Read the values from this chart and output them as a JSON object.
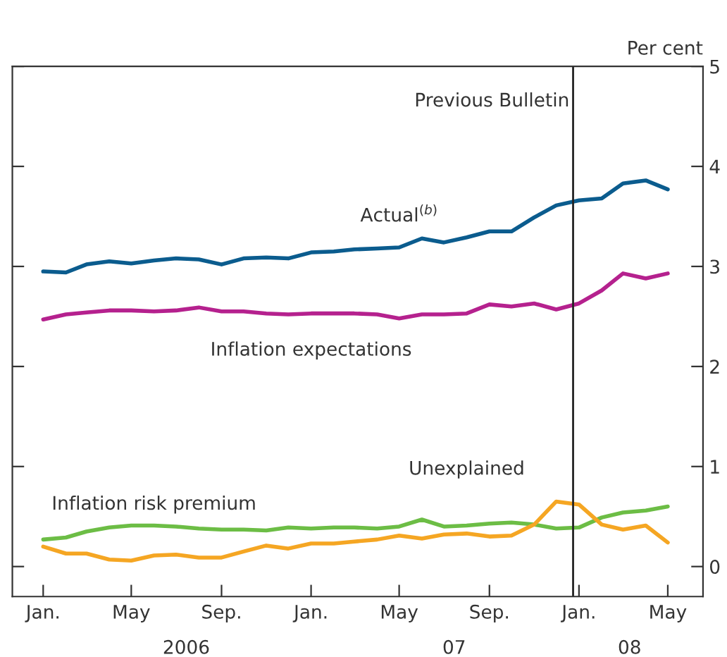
{
  "chart_data": {
    "type": "line",
    "ylabel": "Per cent",
    "x": [
      "2006-01",
      "2006-02",
      "2006-03",
      "2006-04",
      "2006-05",
      "2006-06",
      "2006-07",
      "2006-08",
      "2006-09",
      "2006-10",
      "2006-11",
      "2006-12",
      "2007-01",
      "2007-02",
      "2007-03",
      "2007-04",
      "2007-05",
      "2007-06",
      "2007-07",
      "2007-08",
      "2007-09",
      "2007-10",
      "2007-11",
      "2007-12",
      "2008-01",
      "2008-02",
      "2008-03",
      "2008-04",
      "2008-05"
    ],
    "series": [
      {
        "name": "Actual$^{(b)}$",
        "color": "#0b5c8e",
        "values": [
          2.95,
          2.94,
          3.02,
          3.05,
          3.03,
          3.06,
          3.08,
          3.07,
          3.02,
          3.08,
          3.09,
          3.08,
          3.14,
          3.15,
          3.17,
          3.18,
          3.19,
          3.28,
          3.24,
          3.29,
          3.35,
          3.35,
          3.49,
          3.61,
          3.66,
          3.68,
          3.83,
          3.86,
          3.77
        ]
      },
      {
        "name": "Inflation expectations",
        "color": "#b5218e",
        "values": [
          2.47,
          2.52,
          2.54,
          2.56,
          2.56,
          2.55,
          2.56,
          2.59,
          2.55,
          2.55,
          2.53,
          2.52,
          2.53,
          2.53,
          2.53,
          2.52,
          2.48,
          2.52,
          2.52,
          2.53,
          2.62,
          2.6,
          2.63,
          2.57,
          2.63,
          2.76,
          2.93,
          2.88,
          2.93
        ]
      },
      {
        "name": "Inflation risk premium",
        "color": "#6cbd45",
        "values": [
          0.27,
          0.29,
          0.35,
          0.39,
          0.41,
          0.41,
          0.4,
          0.38,
          0.37,
          0.37,
          0.36,
          0.39,
          0.38,
          0.39,
          0.39,
          0.38,
          0.4,
          0.47,
          0.4,
          0.41,
          0.43,
          0.44,
          0.42,
          0.38,
          0.39,
          0.49,
          0.54,
          0.56,
          0.6
        ]
      },
      {
        "name": "Unexplained",
        "color": "#f5a623",
        "values": [
          0.2,
          0.13,
          0.13,
          0.07,
          0.06,
          0.11,
          0.12,
          0.09,
          0.09,
          0.15,
          0.21,
          0.18,
          0.23,
          0.23,
          0.25,
          0.27,
          0.31,
          0.28,
          0.32,
          0.33,
          0.3,
          0.31,
          0.42,
          0.65,
          0.62,
          0.42,
          0.37,
          0.41,
          0.24
        ]
      }
    ],
    "xlim": [
      "2005-11-20",
      "2008-06-18"
    ],
    "xticks": [
      {
        "value": "2006-01-01",
        "label": "Jan."
      },
      {
        "value": "2006-05-01",
        "label": "May"
      },
      {
        "value": "2006-09-01",
        "label": "Sep."
      },
      {
        "value": "2007-01-01",
        "label": "Jan."
      },
      {
        "value": "2007-05-01",
        "label": "May"
      },
      {
        "value": "2007-09-01",
        "label": "Sep."
      },
      {
        "value": "2008-01-01",
        "label": "Jan."
      },
      {
        "value": "2008-05-01",
        "label": "May"
      }
    ],
    "x2lim": [
      "2005-11-20",
      "2008-06-18"
    ],
    "x2ticks": [
      {
        "value": "2006-07-15",
        "label": "2006"
      },
      {
        "value": "2007-07-15",
        "label": "07"
      },
      {
        "value": "2008-03-10",
        "label": "08"
      }
    ],
    "ylim": [
      -0.3,
      5
    ],
    "yticks": [
      0,
      1,
      2,
      3,
      4,
      5
    ],
    "ref_lines": [
      {
        "axis": "x",
        "value": "2007-12-24",
        "label": "Previous Bulletin",
        "color": "#222222"
      }
    ],
    "grid": false,
    "legend": false,
    "marker": "none",
    "line_style": "solid"
  }
}
